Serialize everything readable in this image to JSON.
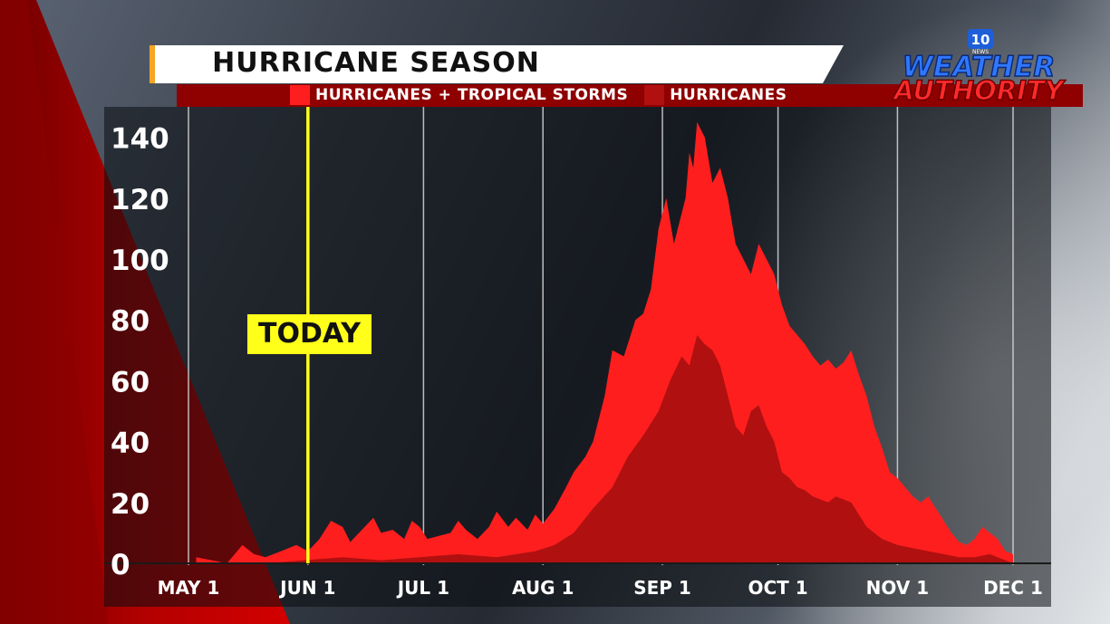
{
  "title": "HURRICANE SEASON",
  "legend": [
    {
      "label": "HURRICANES + TROPICAL STORMS",
      "color": "#ff1e1e"
    },
    {
      "label": "HURRICANES",
      "color": "#b01010"
    }
  ],
  "logo": {
    "line1": "WEATHER",
    "line2": "AUTHORITY",
    "badge": "10",
    "badge_sub": "NEWS"
  },
  "today_label": "TODAY",
  "today_day": 31,
  "chart_data": {
    "type": "area",
    "title": "HURRICANE SEASON",
    "xlabel": "",
    "ylabel": "",
    "ylim": [
      0,
      150
    ],
    "yticks": [
      0,
      20,
      40,
      60,
      80,
      100,
      120,
      140
    ],
    "xticks": [
      {
        "label": "MAY 1",
        "day": 0
      },
      {
        "label": "JUN 1",
        "day": 31
      },
      {
        "label": "JUL 1",
        "day": 61
      },
      {
        "label": "AUG 1",
        "day": 92
      },
      {
        "label": "SEP 1",
        "day": 123
      },
      {
        "label": "OCT 1",
        "day": 153
      },
      {
        "label": "NOV 1",
        "day": 184
      },
      {
        "label": "DEC 1",
        "day": 214
      }
    ],
    "xlim": [
      0,
      214
    ],
    "grid": true,
    "series": [
      {
        "name": "HURRICANES + TROPICAL STORMS",
        "color": "#ff1e1e",
        "points": [
          [
            2,
            2
          ],
          [
            6,
            1
          ],
          [
            10,
            0
          ],
          [
            14,
            6
          ],
          [
            17,
            3
          ],
          [
            20,
            2
          ],
          [
            24,
            4
          ],
          [
            28,
            6
          ],
          [
            31,
            4
          ],
          [
            34,
            8
          ],
          [
            37,
            14
          ],
          [
            40,
            12
          ],
          [
            42,
            7
          ],
          [
            45,
            11
          ],
          [
            48,
            15
          ],
          [
            50,
            10
          ],
          [
            53,
            11
          ],
          [
            56,
            8
          ],
          [
            58,
            14
          ],
          [
            60,
            12
          ],
          [
            62,
            8
          ],
          [
            65,
            9
          ],
          [
            68,
            10
          ],
          [
            70,
            14
          ],
          [
            72,
            11
          ],
          [
            75,
            8
          ],
          [
            78,
            12
          ],
          [
            80,
            17
          ],
          [
            83,
            12
          ],
          [
            85,
            15
          ],
          [
            88,
            11
          ],
          [
            90,
            16
          ],
          [
            92,
            13
          ],
          [
            95,
            18
          ],
          [
            98,
            25
          ],
          [
            100,
            30
          ],
          [
            103,
            35
          ],
          [
            105,
            40
          ],
          [
            108,
            55
          ],
          [
            110,
            70
          ],
          [
            113,
            68
          ],
          [
            116,
            80
          ],
          [
            118,
            82
          ],
          [
            120,
            90
          ],
          [
            122,
            110
          ],
          [
            124,
            120
          ],
          [
            126,
            105
          ],
          [
            127,
            110
          ],
          [
            129,
            120
          ],
          [
            130,
            135
          ],
          [
            131,
            130
          ],
          [
            132,
            145
          ],
          [
            134,
            140
          ],
          [
            136,
            125
          ],
          [
            138,
            130
          ],
          [
            140,
            120
          ],
          [
            142,
            105
          ],
          [
            144,
            100
          ],
          [
            146,
            95
          ],
          [
            148,
            105
          ],
          [
            150,
            100
          ],
          [
            152,
            95
          ],
          [
            154,
            85
          ],
          [
            156,
            78
          ],
          [
            158,
            75
          ],
          [
            160,
            72
          ],
          [
            162,
            68
          ],
          [
            164,
            65
          ],
          [
            166,
            67
          ],
          [
            168,
            64
          ],
          [
            170,
            66
          ],
          [
            172,
            70
          ],
          [
            174,
            62
          ],
          [
            176,
            55
          ],
          [
            178,
            45
          ],
          [
            180,
            38
          ],
          [
            182,
            30
          ],
          [
            184,
            28
          ],
          [
            186,
            25
          ],
          [
            188,
            22
          ],
          [
            190,
            20
          ],
          [
            192,
            22
          ],
          [
            194,
            18
          ],
          [
            196,
            14
          ],
          [
            198,
            10
          ],
          [
            200,
            7
          ],
          [
            202,
            6
          ],
          [
            204,
            8
          ],
          [
            206,
            12
          ],
          [
            208,
            10
          ],
          [
            210,
            8
          ],
          [
            212,
            4
          ],
          [
            214,
            3
          ]
        ]
      },
      {
        "name": "HURRICANES",
        "color": "#b01010",
        "points": [
          [
            2,
            0
          ],
          [
            20,
            0
          ],
          [
            30,
            1
          ],
          [
            40,
            2
          ],
          [
            50,
            1
          ],
          [
            60,
            2
          ],
          [
            70,
            3
          ],
          [
            80,
            2
          ],
          [
            90,
            4
          ],
          [
            95,
            6
          ],
          [
            100,
            10
          ],
          [
            105,
            18
          ],
          [
            110,
            25
          ],
          [
            114,
            35
          ],
          [
            118,
            42
          ],
          [
            122,
            50
          ],
          [
            125,
            60
          ],
          [
            128,
            68
          ],
          [
            130,
            65
          ],
          [
            132,
            75
          ],
          [
            134,
            72
          ],
          [
            136,
            70
          ],
          [
            138,
            65
          ],
          [
            140,
            55
          ],
          [
            142,
            45
          ],
          [
            144,
            42
          ],
          [
            146,
            50
          ],
          [
            148,
            52
          ],
          [
            150,
            45
          ],
          [
            152,
            40
          ],
          [
            154,
            30
          ],
          [
            156,
            28
          ],
          [
            158,
            25
          ],
          [
            160,
            24
          ],
          [
            162,
            22
          ],
          [
            164,
            21
          ],
          [
            166,
            20
          ],
          [
            168,
            22
          ],
          [
            170,
            21
          ],
          [
            172,
            20
          ],
          [
            174,
            16
          ],
          [
            176,
            12
          ],
          [
            178,
            10
          ],
          [
            180,
            8
          ],
          [
            184,
            6
          ],
          [
            188,
            5
          ],
          [
            192,
            4
          ],
          [
            196,
            3
          ],
          [
            200,
            2
          ],
          [
            204,
            2
          ],
          [
            208,
            3
          ],
          [
            212,
            1
          ],
          [
            214,
            0
          ]
        ]
      }
    ]
  }
}
